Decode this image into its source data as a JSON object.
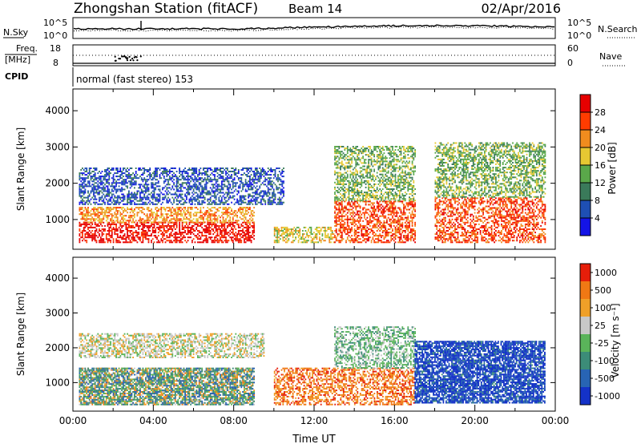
{
  "header": {
    "station": "Zhongshan Station (fitACF)",
    "beam": "Beam 14",
    "date": "02/Apr/2016"
  },
  "noise_panel": {
    "left_label": "N.Sky",
    "left_ticks": [
      "10^5",
      "10^0"
    ],
    "right_label": "N.Search",
    "right_ticks": [
      "10^5",
      "10^0"
    ]
  },
  "freq_panel": {
    "left_label_top": "Freq.",
    "left_label_bottom": "[MHz]",
    "left_ticks": [
      "18",
      "8"
    ],
    "right_label": "Nave",
    "right_ticks": [
      "60",
      "0"
    ]
  },
  "cpid": {
    "label": "CPID",
    "value": "normal (fast stereo) 153"
  },
  "chart_data": [
    {
      "type": "heatmap",
      "name": "power",
      "ylabel": "Slant Range [km]",
      "yticks": [
        "1000",
        "2000",
        "3000",
        "4000"
      ],
      "ylim": [
        180,
        4600
      ],
      "xlim": [
        0,
        24
      ],
      "colorbar": {
        "label": "Power [dB]",
        "ticks": [
          "4",
          "8",
          "12",
          "16",
          "20",
          "24",
          "28"
        ],
        "colors": [
          "#1414e6",
          "#1e4fb4",
          "#3a7a5a",
          "#5aa84a",
          "#e6c832",
          "#f08c1e",
          "#ff3c00",
          "#e60000"
        ]
      },
      "bands": [
        {
          "x": [
            0.3,
            9.0
          ],
          "y": [
            350,
            900
          ],
          "level": 7
        },
        {
          "x": [
            0.3,
            9.0
          ],
          "y": [
            900,
            1350
          ],
          "level": 5
        },
        {
          "x": [
            0.3,
            10.5
          ],
          "y": [
            1400,
            2400
          ],
          "level": 1
        },
        {
          "x": [
            10.0,
            13.0
          ],
          "y": [
            350,
            800
          ],
          "level": 4
        },
        {
          "x": [
            13.0,
            17.0
          ],
          "y": [
            350,
            1500
          ],
          "level": 6
        },
        {
          "x": [
            13.0,
            17.0
          ],
          "y": [
            1500,
            3000
          ],
          "level": 3
        },
        {
          "x": [
            18.0,
            23.5
          ],
          "y": [
            350,
            1600
          ],
          "level": 6
        },
        {
          "x": [
            18.0,
            23.5
          ],
          "y": [
            1600,
            3100
          ],
          "level": 3
        }
      ]
    },
    {
      "type": "heatmap",
      "name": "velocity",
      "ylabel": "Slant Range [km]",
      "yticks": [
        "1000",
        "2000",
        "3000",
        "4000"
      ],
      "ylim": [
        180,
        4600
      ],
      "xlim": [
        0,
        24
      ],
      "xticks": [
        "00:00",
        "04:00",
        "08:00",
        "12:00",
        "16:00",
        "20:00",
        "00:00"
      ],
      "xlabel": "Time UT",
      "colorbar": {
        "label": "Velocity [m s⁻¹]",
        "ticks": [
          "1000",
          "500",
          "100",
          "25",
          "-25",
          "-100",
          "-500",
          "-1000"
        ],
        "colors": [
          "#1432c8",
          "#2864b4",
          "#3c8c78",
          "#5ab45a",
          "#c8c8c8",
          "#f0a028",
          "#f07814",
          "#e61e0a"
        ]
      },
      "bands": [
        {
          "x": [
            0.3,
            9.0
          ],
          "y": [
            350,
            1400
          ],
          "level": 5
        },
        {
          "x": [
            0.3,
            9.0
          ],
          "y": [
            350,
            1400
          ],
          "level": 2
        },
        {
          "x": [
            0.3,
            9.5
          ],
          "y": [
            1700,
            2400
          ],
          "level": 4
        },
        {
          "x": [
            10.0,
            17.0
          ],
          "y": [
            350,
            1400
          ],
          "level": 6
        },
        {
          "x": [
            13.0,
            17.0
          ],
          "y": [
            1400,
            2600
          ],
          "level": 3
        },
        {
          "x": [
            17.0,
            23.5
          ],
          "y": [
            400,
            2200
          ],
          "level": 1
        },
        {
          "x": [
            17.0,
            23.5
          ],
          "y": [
            400,
            2200
          ],
          "level": 0
        }
      ]
    }
  ]
}
